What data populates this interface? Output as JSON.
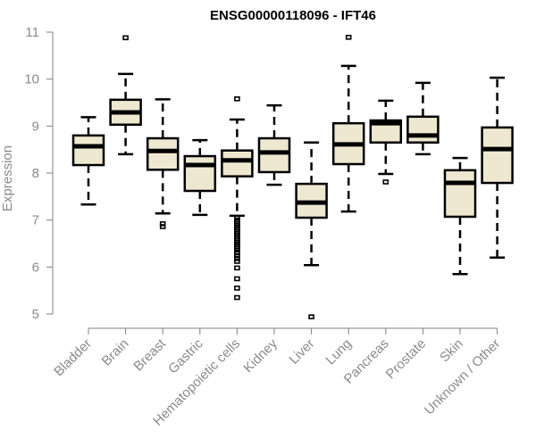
{
  "chart_data": {
    "type": "boxplot",
    "title": "ENSG00000118096 - IFT46",
    "xlabel": "",
    "ylabel": "Expression",
    "ylim": [
      5,
      11
    ],
    "yticks": [
      "5",
      "6",
      "7",
      "8",
      "9",
      "10",
      "11"
    ],
    "grid": false,
    "legend": "none",
    "box_fill": "#EEE8D0",
    "categories": [
      "Bladder",
      "Brain",
      "Breast",
      "Gastric",
      "Hematopoietic cells",
      "Kidney",
      "Liver",
      "Lung",
      "Pancreas",
      "Prostate",
      "Skin",
      "Unknown / Other"
    ],
    "boxes": [
      {
        "name": "Bladder",
        "whisker_low": 7.33,
        "q1": 8.17,
        "median": 8.57,
        "q3": 8.8,
        "whisker_high": 9.19,
        "outliers": []
      },
      {
        "name": "Brain",
        "whisker_low": 8.4,
        "q1": 9.03,
        "median": 9.29,
        "q3": 9.56,
        "whisker_high": 10.11,
        "outliers": [
          10.88
        ]
      },
      {
        "name": "Breast",
        "whisker_low": 7.14,
        "q1": 8.07,
        "median": 8.47,
        "q3": 8.74,
        "whisker_high": 9.57,
        "outliers": [
          6.92,
          6.86
        ]
      },
      {
        "name": "Gastric",
        "whisker_low": 7.11,
        "q1": 7.62,
        "median": 8.17,
        "q3": 8.36,
        "whisker_high": 8.7,
        "outliers": []
      },
      {
        "name": "Hematopoietic cells",
        "whisker_low": 7.09,
        "q1": 7.93,
        "median": 8.27,
        "q3": 8.48,
        "whisker_high": 9.14,
        "outliers": [
          9.58,
          7.05,
          7.0,
          6.96,
          6.92,
          6.88,
          6.84,
          6.8,
          6.76,
          6.72,
          6.68,
          6.64,
          6.6,
          6.56,
          6.52,
          6.48,
          6.44,
          6.4,
          6.36,
          6.3,
          6.24,
          6.18,
          6.12,
          5.98,
          5.75,
          5.55,
          5.35
        ]
      },
      {
        "name": "Kidney",
        "whisker_low": 7.75,
        "q1": 8.02,
        "median": 8.44,
        "q3": 8.74,
        "whisker_high": 9.44,
        "outliers": []
      },
      {
        "name": "Liver",
        "whisker_low": 6.04,
        "q1": 7.05,
        "median": 7.37,
        "q3": 7.77,
        "whisker_high": 8.65,
        "outliers": [
          4.94
        ]
      },
      {
        "name": "Lung",
        "whisker_low": 7.18,
        "q1": 8.19,
        "median": 8.61,
        "q3": 9.06,
        "whisker_high": 10.28,
        "outliers": [
          10.89
        ]
      },
      {
        "name": "Pancreas",
        "whisker_low": 7.98,
        "q1": 8.65,
        "median": 9.06,
        "q3": 9.12,
        "whisker_high": 9.54,
        "outliers": [
          7.81
        ]
      },
      {
        "name": "Prostate",
        "whisker_low": 8.4,
        "q1": 8.65,
        "median": 8.8,
        "q3": 9.2,
        "whisker_high": 9.92,
        "outliers": []
      },
      {
        "name": "Skin",
        "whisker_low": 5.85,
        "q1": 7.07,
        "median": 7.79,
        "q3": 8.06,
        "whisker_high": 8.32,
        "outliers": []
      },
      {
        "name": "Unknown / Other",
        "whisker_low": 6.2,
        "q1": 7.79,
        "median": 8.51,
        "q3": 8.97,
        "whisker_high": 10.03,
        "outliers": []
      }
    ]
  }
}
